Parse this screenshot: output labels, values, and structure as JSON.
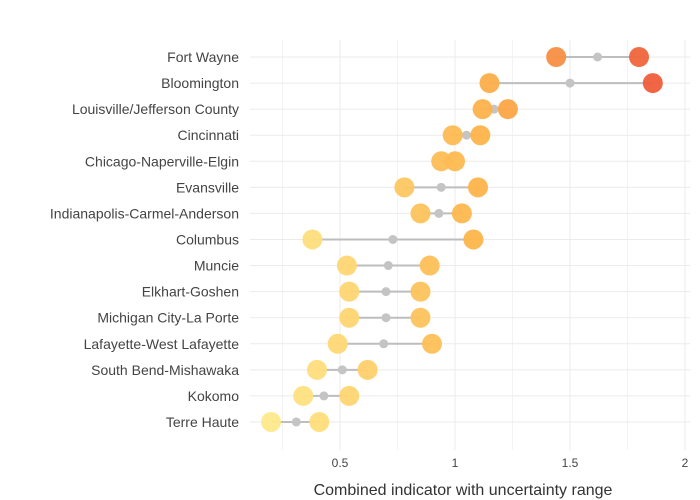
{
  "chart_data": {
    "type": "scatter",
    "subtype": "dumbbell",
    "title": "",
    "xlabel": "Combined indicator with uncertainty range",
    "ylabel": "",
    "xlim": [
      0,
      2
    ],
    "xticks": [
      0.5,
      1,
      1.5,
      2
    ],
    "xtick_labels": [
      "0.5",
      "1",
      "1.5",
      "2"
    ],
    "grid": true,
    "legend": "none",
    "categories": [
      "Fort Wayne",
      "Bloomington",
      "Louisville/Jefferson County",
      "Cincinnati",
      "Chicago-Naperville-Elgin",
      "Evansville",
      "Indianapolis-Carmel-Anderson",
      "Columbus",
      "Muncie",
      "Elkhart-Goshen",
      "Michigan City-La Porte",
      "Lafayette-West Lafayette",
      "South Bend-Mishawaka",
      "Kokomo",
      "Terre Haute"
    ],
    "series": [
      {
        "role": "lower",
        "values": [
          1.44,
          1.15,
          1.12,
          0.99,
          0.94,
          0.78,
          0.85,
          0.38,
          0.53,
          0.54,
          0.54,
          0.49,
          0.4,
          0.34,
          0.2
        ]
      },
      {
        "role": "center",
        "values": [
          1.62,
          1.5,
          1.17,
          1.05,
          0.97,
          0.94,
          0.93,
          0.73,
          0.71,
          0.7,
          0.7,
          0.69,
          0.51,
          0.43,
          0.31
        ]
      },
      {
        "role": "upper",
        "values": [
          1.8,
          1.86,
          1.23,
          1.11,
          1.0,
          1.1,
          1.03,
          1.08,
          0.89,
          0.85,
          0.85,
          0.9,
          0.62,
          0.54,
          0.41
        ]
      }
    ],
    "colors": {
      "connector": "#bdbdbd",
      "center_point": "#c4c4c4",
      "gridline": "#ebebeb",
      "scale_low": "#fee98a",
      "scale_mid": "#fdb44a",
      "scale_high": "#ee5a3a"
    }
  }
}
